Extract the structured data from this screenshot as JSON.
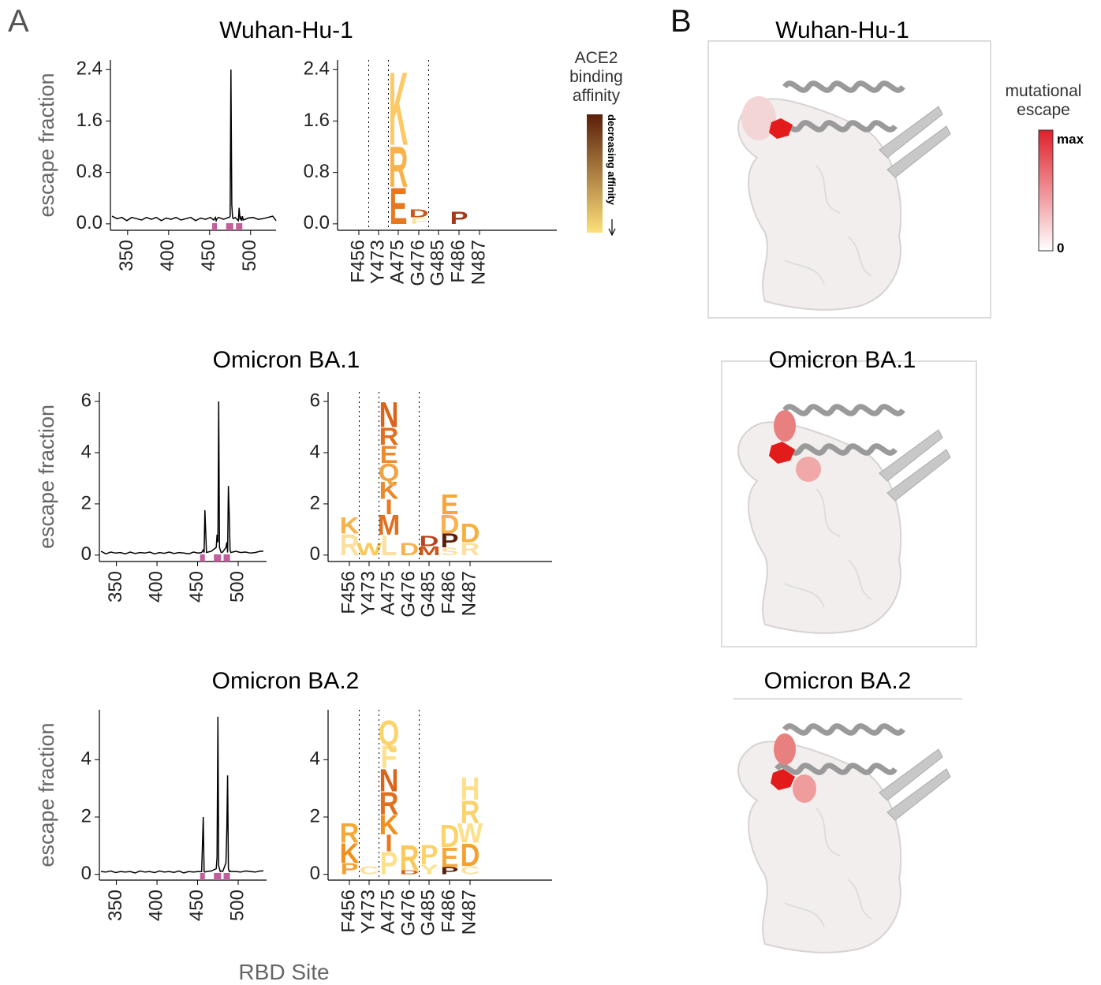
{
  "panel_labels": [
    "A",
    "B"
  ],
  "x_label": "RBD Site",
  "affinity_legend": {
    "title_lines": [
      "ACE2",
      "binding",
      "affinity"
    ],
    "direction_label": "decreasing affinity",
    "colors": [
      "#5a1f0a",
      "#fde07a"
    ]
  },
  "escape_legend": {
    "title_lines": [
      "mutational",
      "escape"
    ],
    "max_label": "max",
    "min_label": "0",
    "colors": [
      "#e0202a",
      "#ffffff"
    ]
  },
  "structures": [
    {
      "title": "Wuhan-Hu-1"
    },
    {
      "title": "Omicron BA.1"
    },
    {
      "title": "Omicron BA.2"
    }
  ],
  "chart_data": [
    {
      "type": "line",
      "title": "Wuhan-Hu-1",
      "y_label": "escape fraction",
      "color": "#000000",
      "highlight_color": "#c0609a",
      "x": [
        331,
        337,
        343,
        349,
        355,
        361,
        367,
        373,
        379,
        385,
        391,
        397,
        403,
        409,
        415,
        421,
        427,
        433,
        439,
        445,
        451,
        455,
        457,
        458,
        459,
        461,
        467,
        473,
        474,
        475,
        476,
        477,
        478,
        479,
        481,
        485,
        486,
        487,
        488,
        489,
        490,
        491,
        497,
        503,
        509,
        515,
        521,
        527,
        531
      ],
      "values": [
        0.12,
        0.08,
        0.1,
        0.05,
        0.1,
        0.08,
        0.06,
        0.1,
        0.07,
        0.1,
        0.05,
        0.09,
        0.07,
        0.1,
        0.06,
        0.08,
        0.1,
        0.05,
        0.09,
        0.07,
        0.1,
        0.06,
        0.1,
        0.05,
        0.08,
        0.1,
        0.07,
        0.1,
        0.1,
        0.12,
        2.4,
        0.3,
        0.1,
        0.08,
        0.1,
        0.05,
        0.25,
        0.08,
        0.1,
        0.05,
        0.12,
        0.06,
        0.09,
        0.1,
        0.07,
        0.08,
        0.1,
        0.12,
        0.05
      ],
      "highlight_sites": [
        456,
        473,
        475,
        476,
        485,
        486,
        487
      ],
      "xlim": [
        329,
        531
      ],
      "ylim": [
        -0.1,
        2.55
      ],
      "xticks": [
        350,
        400,
        450,
        500
      ],
      "yticks": [
        {
          "value": 0,
          "label": "0.0"
        },
        0.8,
        1.6,
        2.4
      ]
    },
    {
      "type": "logo",
      "ylim": [
        -0.1,
        2.55
      ],
      "yticks": [
        {
          "value": 0,
          "label": "0.0"
        },
        0.8,
        1.6,
        2.4
      ],
      "groups": [
        {
          "sites": [
            {
              "label": "F456",
              "letters": []
            }
          ]
        },
        {
          "sites": [
            {
              "label": "Y473",
              "letters": []
            }
          ]
        },
        {
          "sites": [
            {
              "label": "A475",
              "letters": [
                {
                  "letter": "E",
                  "value": 0.58,
                  "color": "#e8781f"
                },
                {
                  "letter": "R",
                  "value": 0.65,
                  "color": "#f9b24a"
                },
                {
                  "letter": "K",
                  "value": 1.17,
                  "color": "#fcc966"
                }
              ]
            },
            {
              "label": "G476",
              "letters": [
                {
                  "letter": "F",
                  "value": 0.1,
                  "color": "#fde3a0"
                },
                {
                  "letter": "D",
                  "value": 0.13,
                  "color": "#c9561a"
                }
              ]
            }
          ]
        },
        {
          "sites": [
            {
              "label": "G485",
              "letters": []
            },
            {
              "label": "F486",
              "letters": [
                {
                  "letter": "P",
                  "value": 0.2,
                  "color": "#a3381a"
                }
              ]
            },
            {
              "label": "N487",
              "letters": []
            }
          ]
        }
      ]
    },
    {
      "type": "line",
      "title": "Omicron BA.1",
      "y_label": "escape fraction",
      "color": "#000000",
      "highlight_color": "#c0609a",
      "x": [
        331,
        337,
        343,
        349,
        355,
        361,
        367,
        373,
        379,
        385,
        391,
        397,
        403,
        409,
        415,
        421,
        427,
        433,
        439,
        445,
        451,
        455,
        457,
        458,
        459,
        461,
        467,
        473,
        474,
        475,
        476,
        477,
        478,
        479,
        481,
        485,
        486,
        487,
        488,
        489,
        490,
        491,
        497,
        503,
        509,
        515,
        521,
        527,
        531
      ],
      "values": [
        0.15,
        0.05,
        0.12,
        0.08,
        0.1,
        0.05,
        0.12,
        0.06,
        0.1,
        0.08,
        0.12,
        0.05,
        0.1,
        0.07,
        0.12,
        0.06,
        0.1,
        0.08,
        0.05,
        0.12,
        0.08,
        0.1,
        0.2,
        0.1,
        1.75,
        0.1,
        0.15,
        0.3,
        0.8,
        0.5,
        6.0,
        0.3,
        0.2,
        0.1,
        0.12,
        0.3,
        0.5,
        0.1,
        2.7,
        1.55,
        0.2,
        0.1,
        0.15,
        0.1,
        0.12,
        0.08,
        0.1,
        0.15,
        0.15
      ],
      "highlight_sites": [
        456,
        473,
        475,
        476,
        485,
        486,
        487
      ],
      "xlim": [
        329,
        535
      ],
      "ylim": [
        -0.25,
        6.37
      ],
      "xticks": [
        350,
        400,
        450,
        500
      ],
      "yticks": [
        0,
        2,
        4,
        6
      ]
    },
    {
      "type": "logo",
      "ylim": [
        -0.25,
        6.37
      ],
      "yticks": [
        0,
        2,
        4,
        6
      ],
      "groups": [
        {
          "sites": [
            {
              "label": "F456",
              "letters": [
                {
                  "letter": "R",
                  "value": 0.85,
                  "color": "#fde0a0"
                },
                {
                  "letter": "K",
                  "value": 0.65,
                  "color": "#f9b24a"
                }
              ]
            }
          ]
        },
        {
          "sites": [
            {
              "label": "Y473",
              "letters": [
                {
                  "letter": "W",
                  "value": 0.5,
                  "color": "#fbc95a"
                }
              ]
            }
          ]
        },
        {
          "sites": [
            {
              "label": "A475",
              "letters": [
                {
                  "letter": "L",
                  "value": 0.8,
                  "color": "#fde0a0"
                },
                {
                  "letter": "M",
                  "value": 0.8,
                  "color": "#e0701f"
                },
                {
                  "letter": "I",
                  "value": 0.6,
                  "color": "#e8781f"
                },
                {
                  "letter": "K",
                  "value": 0.7,
                  "color": "#ea8a2a"
                },
                {
                  "letter": "Q",
                  "value": 0.7,
                  "color": "#f0a445"
                },
                {
                  "letter": "E",
                  "value": 0.7,
                  "color": "#ec8a30"
                },
                {
                  "letter": "R",
                  "value": 0.7,
                  "color": "#e0701f"
                },
                {
                  "letter": "N",
                  "value": 1.0,
                  "color": "#d9651a"
                }
              ]
            },
            {
              "label": "G476",
              "letters": [
                {
                  "letter": "D",
                  "value": 0.5,
                  "color": "#f9b24a"
                }
              ]
            }
          ]
        },
        {
          "sites": [
            {
              "label": "G485",
              "letters": [
                {
                  "letter": "M",
                  "value": 0.35,
                  "color": "#c9561a"
                },
                {
                  "letter": "D",
                  "value": 0.4,
                  "color": "#b5451b"
                }
              ]
            },
            {
              "label": "F486",
              "letters": [
                {
                  "letter": "S",
                  "value": 0.3,
                  "color": "#fde0a0"
                },
                {
                  "letter": "P",
                  "value": 0.55,
                  "color": "#5a1f0a"
                },
                {
                  "letter": "D",
                  "value": 0.75,
                  "color": "#f9b24a"
                },
                {
                  "letter": "E",
                  "value": 0.8,
                  "color": "#f4a73a"
                }
              ]
            },
            {
              "label": "N487",
              "letters": [
                {
                  "letter": "R",
                  "value": 0.5,
                  "color": "#fde0a0"
                },
                {
                  "letter": "D",
                  "value": 0.75,
                  "color": "#f7b040"
                }
              ]
            }
          ]
        }
      ]
    },
    {
      "type": "line",
      "title": "Omicron BA.2",
      "y_label": "escape fraction",
      "color": "#000000",
      "highlight_color": "#c0609a",
      "x": [
        331,
        337,
        343,
        349,
        355,
        361,
        367,
        373,
        379,
        385,
        391,
        397,
        403,
        409,
        415,
        421,
        427,
        433,
        439,
        445,
        451,
        455,
        457,
        458,
        459,
        461,
        467,
        473,
        474,
        475,
        476,
        477,
        478,
        479,
        481,
        485,
        486,
        487,
        488,
        489,
        490,
        491,
        497,
        503,
        509,
        515,
        521,
        527,
        531
      ],
      "values": [
        0.1,
        0.08,
        0.12,
        0.06,
        0.1,
        0.08,
        0.1,
        0.05,
        0.12,
        0.08,
        0.1,
        0.06,
        0.12,
        0.08,
        0.1,
        0.07,
        0.12,
        0.05,
        0.1,
        0.08,
        0.1,
        0.1,
        2.0,
        0.1,
        0.08,
        0.1,
        0.12,
        0.2,
        0.6,
        5.5,
        0.3,
        0.2,
        0.1,
        0.12,
        0.1,
        0.4,
        1.6,
        3.45,
        0.2,
        0.1,
        0.12,
        0.1,
        0.1,
        0.08,
        0.12,
        0.1,
        0.08,
        0.12,
        0.12
      ],
      "highlight_sites": [
        456,
        473,
        475,
        476,
        485,
        486,
        487
      ],
      "xlim": [
        329,
        535
      ],
      "ylim": [
        -0.2,
        5.74
      ],
      "xticks": [
        350,
        400,
        450,
        500
      ],
      "yticks": [
        0,
        2,
        4
      ]
    },
    {
      "type": "logo",
      "ylim": [
        -0.2,
        5.74
      ],
      "yticks": [
        0,
        2,
        4
      ],
      "groups": [
        {
          "sites": [
            {
              "label": "F456",
              "letters": [
                {
                  "letter": "P",
                  "value": 0.4,
                  "color": "#f5a030"
                },
                {
                  "letter": "K",
                  "value": 0.7,
                  "color": "#f0901f"
                },
                {
                  "letter": "R",
                  "value": 0.7,
                  "color": "#f5a83a"
                }
              ]
            }
          ]
        },
        {
          "sites": [
            {
              "label": "Y473",
              "letters": [
                {
                  "letter": "C",
                  "value": 0.3,
                  "color": "#fde0a0"
                }
              ]
            }
          ]
        },
        {
          "sites": [
            {
              "label": "A475",
              "letters": [
                {
                  "letter": "P",
                  "value": 0.8,
                  "color": "#fde08a"
                },
                {
                  "letter": "I",
                  "value": 0.6,
                  "color": "#e8781f"
                },
                {
                  "letter": "K",
                  "value": 0.7,
                  "color": "#f0901f"
                },
                {
                  "letter": "R",
                  "value": 0.8,
                  "color": "#e0701f"
                },
                {
                  "letter": "N",
                  "value": 0.8,
                  "color": "#d9651a"
                },
                {
                  "letter": "F",
                  "value": 0.8,
                  "color": "#fde08a"
                },
                {
                  "letter": "Q",
                  "value": 0.9,
                  "color": "#fcd36a"
                }
              ]
            },
            {
              "label": "G476",
              "letters": [
                {
                  "letter": "D",
                  "value": 0.15,
                  "color": "#d9651a"
                },
                {
                  "letter": "R",
                  "value": 0.9,
                  "color": "#fbc95a"
                }
              ]
            }
          ]
        },
        {
          "sites": [
            {
              "label": "G485",
              "letters": [
                {
                  "letter": "Y",
                  "value": 0.35,
                  "color": "#fde08a"
                },
                {
                  "letter": "P",
                  "value": 0.7,
                  "color": "#fcd36a"
                }
              ]
            },
            {
              "label": "F486",
              "letters": [
                {
                  "letter": "P",
                  "value": 0.25,
                  "color": "#5a1f0a"
                },
                {
                  "letter": "E",
                  "value": 0.7,
                  "color": "#f4a73a"
                },
                {
                  "letter": "D",
                  "value": 0.8,
                  "color": "#fcd36a"
                }
              ]
            },
            {
              "label": "N487",
              "letters": [
                {
                  "letter": "C",
                  "value": 0.3,
                  "color": "#fde0a0"
                },
                {
                  "letter": "D",
                  "value": 0.8,
                  "color": "#f5a030"
                },
                {
                  "letter": "W",
                  "value": 0.7,
                  "color": "#fde08a"
                },
                {
                  "letter": "R",
                  "value": 0.8,
                  "color": "#fcd36a"
                },
                {
                  "letter": "H",
                  "value": 0.8,
                  "color": "#fde08a"
                }
              ]
            }
          ]
        }
      ]
    }
  ]
}
